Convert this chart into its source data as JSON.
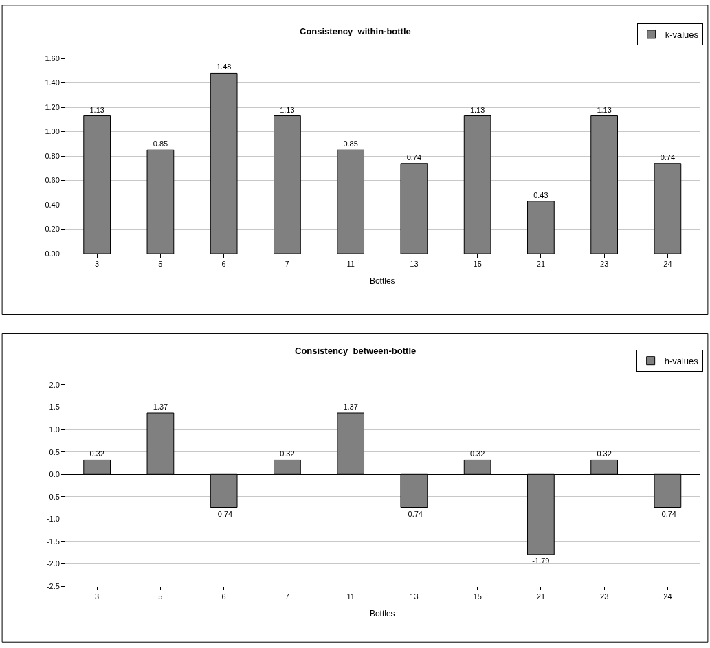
{
  "chart_data": [
    {
      "type": "bar",
      "title": "Consistency  within-bottle",
      "xlabel": "Bottles",
      "categories": [
        "3",
        "5",
        "6",
        "7",
        "11",
        "13",
        "15",
        "21",
        "23",
        "24"
      ],
      "series": [
        {
          "name": "k-values",
          "color": "#808080",
          "values": [
            1.13,
            0.85,
            1.48,
            1.13,
            0.85,
            0.74,
            1.13,
            0.43,
            1.13,
            0.74
          ]
        }
      ],
      "ylim": [
        0,
        1.6
      ],
      "yticks": [
        {
          "value": 0,
          "label": "0.00"
        },
        {
          "value": 0.2,
          "label": "0.20"
        },
        {
          "value": 0.4,
          "label": "0.40"
        },
        {
          "value": 0.6,
          "label": "0.60"
        },
        {
          "value": 0.8,
          "label": "0.80"
        },
        {
          "value": 1.0,
          "label": "1.00"
        },
        {
          "value": 1.2,
          "label": "1.20"
        },
        {
          "value": 1.4,
          "label": "1.40"
        },
        {
          "value": 1.6,
          "label": "1.60"
        }
      ],
      "grid": "y",
      "legend": "top right",
      "data_labels": true
    },
    {
      "type": "bar",
      "title": "Consistency  between-bottle",
      "xlabel": "Bottles",
      "categories": [
        "3",
        "5",
        "6",
        "7",
        "11",
        "13",
        "15",
        "21",
        "23",
        "24"
      ],
      "series": [
        {
          "name": "h-values",
          "color": "#808080",
          "values": [
            0.32,
            1.37,
            -0.74,
            0.32,
            1.37,
            -0.74,
            0.32,
            -1.79,
            0.32,
            -0.74
          ]
        }
      ],
      "ylim": [
        -2.5,
        2.0
      ],
      "yticks": [
        {
          "value": -2.5,
          "label": "-2.5"
        },
        {
          "value": -2.0,
          "label": "-2.0"
        },
        {
          "value": -1.5,
          "label": "-1.5"
        },
        {
          "value": -1.0,
          "label": "-1.0"
        },
        {
          "value": -0.5,
          "label": "-0.5"
        },
        {
          "value": 0,
          "label": "0.0"
        },
        {
          "value": 0.5,
          "label": "0.5"
        },
        {
          "value": 1.0,
          "label": "1.0"
        },
        {
          "value": 1.5,
          "label": "1.5"
        },
        {
          "value": 2.0,
          "label": "2.0"
        }
      ],
      "grid": "y",
      "legend": "top right",
      "data_labels": true
    }
  ]
}
